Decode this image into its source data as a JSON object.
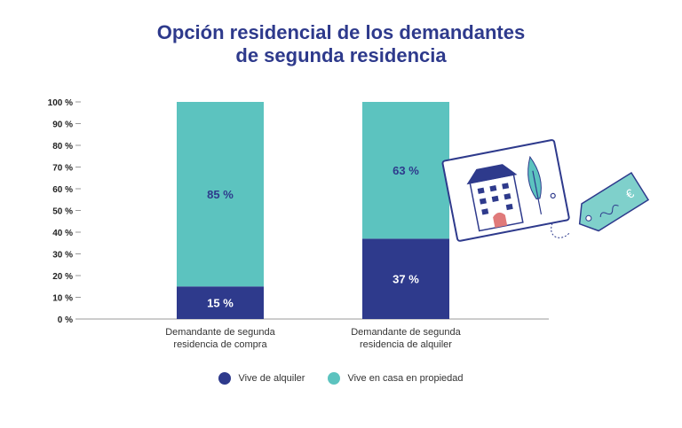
{
  "chart_data": {
    "type": "bar",
    "stacked": true,
    "title_lines": [
      "Opción residencial de los demandantes",
      "de segunda residencia"
    ],
    "categories": [
      [
        "Demandante de segunda",
        "residencia de compra"
      ],
      [
        "Demandante de segunda",
        "residencia de alquiler"
      ]
    ],
    "series": [
      {
        "name": "Vive de alquiler",
        "values": [
          15,
          37
        ],
        "labels": [
          "15 %",
          "37 %"
        ],
        "color": "#2e3a8c",
        "label_color": "#ffffff"
      },
      {
        "name": "Vive en casa en propiedad",
        "values": [
          85,
          63
        ],
        "labels": [
          "85 %",
          "63 %"
        ],
        "color": "#5cc3bf",
        "label_color": "#2e3a8c"
      }
    ],
    "yticks": [
      "0 %",
      "10 %",
      "20 %",
      "30 %",
      "40 %",
      "50 %",
      "60 %",
      "70 %",
      "80 %",
      "90 %",
      "100 %"
    ],
    "ylim": [
      0,
      100
    ],
    "grid": false,
    "legend_position": "bottom"
  },
  "illustration": {
    "icon": "house-for-rent-price-tag-icon",
    "tag_symbol": "€"
  }
}
